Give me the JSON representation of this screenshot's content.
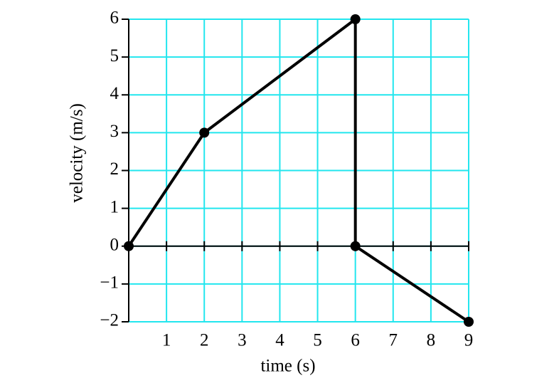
{
  "chart_data": {
    "type": "line",
    "xlabel": "time (s)",
    "ylabel": "velocity (m/s)",
    "x": [
      0,
      2,
      6,
      6,
      9
    ],
    "series": [
      {
        "color": "#000000",
        "values": [
          0,
          3,
          6,
          0,
          -2
        ]
      }
    ],
    "xlim": [
      0,
      9
    ],
    "xticks": [
      1,
      2,
      3,
      4,
      5,
      6,
      7,
      8,
      9
    ],
    "ylim": [
      -2,
      6
    ],
    "yticks": [
      {
        "value": -2,
        "label": "−2"
      },
      {
        "value": -1,
        "label": "−1"
      },
      0,
      1,
      2,
      3,
      4,
      5,
      6
    ],
    "grid": true,
    "grid_color": "#22e6ee"
  }
}
